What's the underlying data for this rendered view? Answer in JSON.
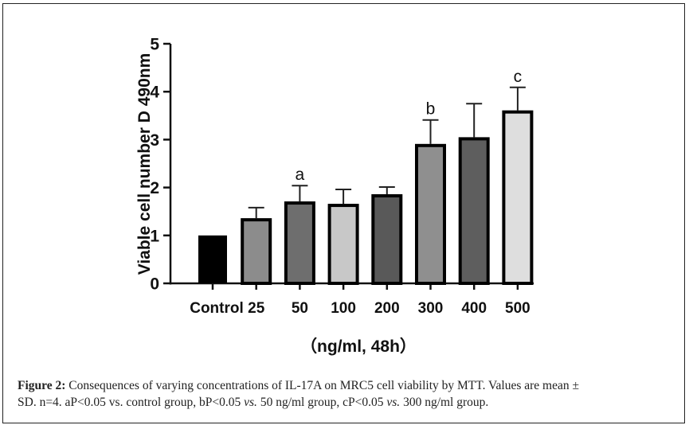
{
  "chart_data": {
    "type": "bar",
    "title": "",
    "xlabel": "（ng/ml, 48h）",
    "ylabel": "Viable cell number D 490nm",
    "ylim": [
      0,
      5
    ],
    "yticks": [
      0,
      1,
      2,
      3,
      4,
      5
    ],
    "grid": false,
    "legend": "none",
    "categories": [
      "Control",
      "25",
      "50",
      "100",
      "200",
      "300",
      "400",
      "500"
    ],
    "values": [
      1.0,
      1.36,
      1.71,
      1.66,
      1.86,
      2.91,
      3.05,
      3.61
    ],
    "error_upper": [
      0.0,
      0.22,
      0.33,
      0.3,
      0.15,
      0.5,
      0.7,
      0.48
    ],
    "significance": [
      "",
      "",
      "a",
      "",
      "",
      "b",
      "",
      "c"
    ],
    "bar_colors": [
      "#000000",
      "#8c8c8c",
      "#6e6e6e",
      "#c8c8c8",
      "#595959",
      "#8f8f8f",
      "#5e5e5e",
      "#dedede"
    ]
  },
  "caption": {
    "label": "Figure 2:",
    "line1": " Consequences of varying concentrations of IL-17A on MRC5 cell viability by MTT. Values are mean ±",
    "line2_a": "SD. n=4. aP<0.05 vs. control group, bP<0.05 ",
    "vs1": "vs.",
    "line2_b": " 50 ng/ml group, cP<0.05 ",
    "vs2": "vs.",
    "line2_c": " 300 ng/ml group."
  }
}
